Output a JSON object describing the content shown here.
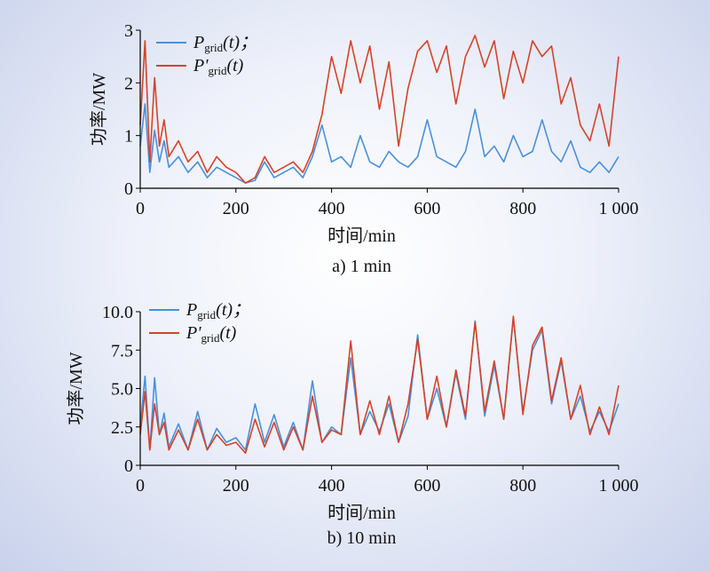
{
  "chart_data": [
    {
      "type": "line",
      "caption": "a) 1 min",
      "xlabel": "时间/min",
      "ylabel": "功率/MW",
      "xlim": [
        0,
        1000
      ],
      "ylim": [
        0,
        3
      ],
      "xticks": [
        0,
        200,
        400,
        600,
        800,
        1000
      ],
      "xtick_labels": [
        "0",
        "200",
        "400",
        "600",
        "800",
        "1 000"
      ],
      "yticks": [
        0,
        1,
        2,
        3
      ],
      "ytick_labels": [
        "0",
        "1",
        "2",
        "3"
      ],
      "legend": [
        {
          "main": "P",
          "prime": "",
          "sub": "grid",
          "arg": "(t)；"
        },
        {
          "main": "P",
          "prime": "'",
          "sub": "grid",
          "arg": "(t)"
        }
      ],
      "legend_position": "top-left",
      "series": [
        {
          "name": "Pgrid(t)",
          "color": "#4a90d9",
          "x": [
            0,
            10,
            20,
            30,
            40,
            50,
            60,
            80,
            100,
            120,
            140,
            160,
            180,
            200,
            220,
            240,
            260,
            280,
            300,
            320,
            340,
            360,
            380,
            400,
            420,
            440,
            460,
            480,
            500,
            520,
            540,
            560,
            580,
            600,
            620,
            640,
            660,
            680,
            700,
            720,
            740,
            760,
            780,
            800,
            820,
            840,
            860,
            880,
            900,
            920,
            940,
            960,
            980,
            1000
          ],
          "values": [
            0.8,
            1.6,
            0.3,
            1.1,
            0.5,
            0.9,
            0.4,
            0.6,
            0.3,
            0.5,
            0.2,
            0.4,
            0.3,
            0.2,
            0.1,
            0.15,
            0.5,
            0.2,
            0.3,
            0.4,
            0.2,
            0.6,
            1.2,
            0.5,
            0.6,
            0.4,
            1.0,
            0.5,
            0.4,
            0.7,
            0.5,
            0.4,
            0.6,
            1.3,
            0.6,
            0.5,
            0.4,
            0.7,
            1.5,
            0.6,
            0.8,
            0.5,
            1.0,
            0.6,
            0.7,
            1.3,
            0.7,
            0.5,
            0.9,
            0.4,
            0.3,
            0.5,
            0.3,
            0.6
          ]
        },
        {
          "name": "P'grid(t)",
          "color": "#d4432a",
          "x": [
            0,
            10,
            20,
            30,
            40,
            50,
            60,
            80,
            100,
            120,
            140,
            160,
            180,
            200,
            220,
            240,
            260,
            280,
            300,
            320,
            340,
            360,
            380,
            400,
            420,
            440,
            460,
            480,
            500,
            520,
            540,
            560,
            580,
            600,
            620,
            640,
            660,
            680,
            700,
            720,
            740,
            760,
            780,
            800,
            820,
            840,
            860,
            880,
            900,
            920,
            940,
            960,
            980,
            1000
          ],
          "values": [
            1.2,
            2.8,
            0.5,
            2.1,
            0.8,
            1.3,
            0.6,
            0.9,
            0.5,
            0.7,
            0.3,
            0.6,
            0.4,
            0.3,
            0.1,
            0.2,
            0.6,
            0.3,
            0.4,
            0.5,
            0.3,
            0.7,
            1.4,
            2.5,
            1.8,
            2.8,
            2.0,
            2.7,
            1.5,
            2.4,
            0.8,
            1.9,
            2.6,
            2.8,
            2.2,
            2.7,
            1.6,
            2.5,
            2.9,
            2.3,
            2.8,
            1.7,
            2.6,
            2.0,
            2.8,
            2.5,
            2.7,
            1.6,
            2.1,
            1.2,
            0.9,
            1.6,
            0.8,
            2.5
          ]
        }
      ]
    },
    {
      "type": "line",
      "caption": "b) 10 min",
      "xlabel": "时间/min",
      "ylabel": "功率/MW",
      "xlim": [
        0,
        1000
      ],
      "ylim": [
        0,
        10
      ],
      "xticks": [
        0,
        200,
        400,
        600,
        800,
        1000
      ],
      "xtick_labels": [
        "0",
        "200",
        "400",
        "600",
        "800",
        "1 000"
      ],
      "yticks": [
        0,
        2.5,
        5.0,
        7.5,
        10.0
      ],
      "ytick_labels": [
        "0",
        "2.5",
        "5.0",
        "7.5",
        "10.0"
      ],
      "legend": [
        {
          "main": "P",
          "prime": "",
          "sub": "grid",
          "arg": "(t)；"
        },
        {
          "main": "P",
          "prime": "'",
          "sub": "grid",
          "arg": "(t)"
        }
      ],
      "legend_position": "top-left",
      "series": [
        {
          "name": "Pgrid(t)",
          "color": "#4a90d9",
          "x": [
            0,
            10,
            20,
            30,
            40,
            50,
            60,
            80,
            100,
            120,
            140,
            160,
            180,
            200,
            220,
            240,
            260,
            280,
            300,
            320,
            340,
            360,
            380,
            400,
            420,
            440,
            460,
            480,
            500,
            520,
            540,
            560,
            580,
            600,
            620,
            640,
            660,
            680,
            700,
            720,
            740,
            760,
            780,
            800,
            820,
            840,
            860,
            880,
            900,
            920,
            940,
            960,
            980,
            1000
          ],
          "values": [
            2.5,
            5.8,
            1.0,
            5.7,
            2.0,
            3.4,
            1.2,
            2.7,
            1.0,
            3.5,
            1.0,
            2.4,
            1.5,
            1.8,
            1.0,
            4.0,
            1.5,
            3.3,
            1.2,
            2.8,
            1.0,
            5.5,
            1.5,
            2.5,
            2.0,
            7.0,
            2.0,
            3.5,
            2.2,
            4.0,
            1.5,
            3.2,
            8.5,
            3.0,
            5.0,
            2.5,
            6.0,
            3.0,
            9.4,
            3.2,
            6.5,
            3.0,
            9.6,
            3.5,
            7.5,
            8.8,
            4.0,
            6.8,
            3.0,
            4.5,
            2.2,
            3.5,
            2.2,
            4.0
          ]
        },
        {
          "name": "P'grid(t)",
          "color": "#d4432a",
          "x": [
            0,
            10,
            20,
            30,
            40,
            50,
            60,
            80,
            100,
            120,
            140,
            160,
            180,
            200,
            220,
            240,
            260,
            280,
            300,
            320,
            340,
            360,
            380,
            400,
            420,
            440,
            460,
            480,
            500,
            520,
            540,
            560,
            580,
            600,
            620,
            640,
            660,
            680,
            700,
            720,
            740,
            760,
            780,
            800,
            820,
            840,
            860,
            880,
            900,
            920,
            940,
            960,
            980,
            1000
          ],
          "values": [
            2.0,
            4.8,
            1.0,
            4.0,
            2.0,
            2.8,
            1.0,
            2.3,
            1.0,
            3.0,
            1.0,
            2.0,
            1.3,
            1.5,
            0.8,
            3.0,
            1.2,
            2.8,
            1.0,
            2.5,
            1.0,
            4.5,
            1.5,
            2.3,
            2.0,
            8.1,
            2.0,
            4.2,
            2.0,
            4.5,
            1.5,
            4.0,
            8.2,
            3.0,
            5.8,
            2.5,
            6.2,
            3.2,
            9.3,
            3.5,
            6.8,
            3.0,
            9.7,
            3.3,
            7.8,
            9.0,
            4.2,
            7.0,
            3.0,
            5.2,
            2.0,
            3.8,
            2.0,
            5.2
          ]
        }
      ]
    }
  ]
}
